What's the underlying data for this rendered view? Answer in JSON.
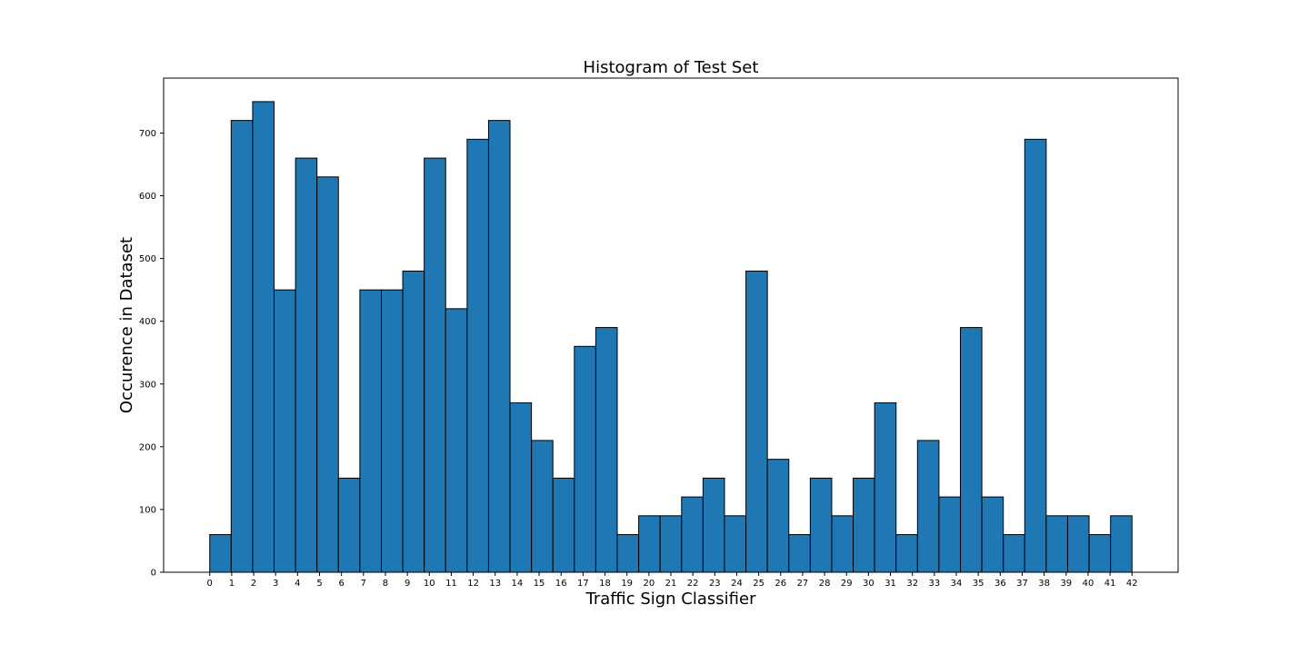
{
  "chart_data": {
    "type": "bar",
    "title": "Histogram of Test Set",
    "xlabel": "Traffic Sign Classifier",
    "ylabel": "Occurence in Dataset",
    "x_ticks": [
      "0",
      "1",
      "2",
      "3",
      "4",
      "5",
      "6",
      "7",
      "8",
      "9",
      "10",
      "11",
      "12",
      "13",
      "14",
      "15",
      "16",
      "17",
      "18",
      "19",
      "20",
      "21",
      "22",
      "23",
      "24",
      "25",
      "26",
      "27",
      "28",
      "29",
      "30",
      "31",
      "32",
      "33",
      "34",
      "35",
      "36",
      "37",
      "38",
      "39",
      "40",
      "41",
      "42"
    ],
    "y_ticks": [
      "0",
      "100",
      "200",
      "300",
      "400",
      "500",
      "600",
      "700"
    ],
    "values": [
      60,
      720,
      750,
      450,
      660,
      630,
      150,
      450,
      450,
      480,
      660,
      420,
      690,
      720,
      270,
      210,
      150,
      360,
      390,
      60,
      90,
      90,
      120,
      150,
      90,
      480,
      180,
      60,
      150,
      90,
      150,
      270,
      60,
      210,
      120,
      390,
      120,
      60,
      690,
      90,
      90,
      60,
      90
    ],
    "xlim": [
      -2.1,
      44.1
    ],
    "ylim": [
      0,
      787.5
    ],
    "bar_range": [
      0,
      42
    ],
    "grid": false,
    "colors": {
      "bar": "#1f77b4",
      "edge": "#000000"
    }
  }
}
